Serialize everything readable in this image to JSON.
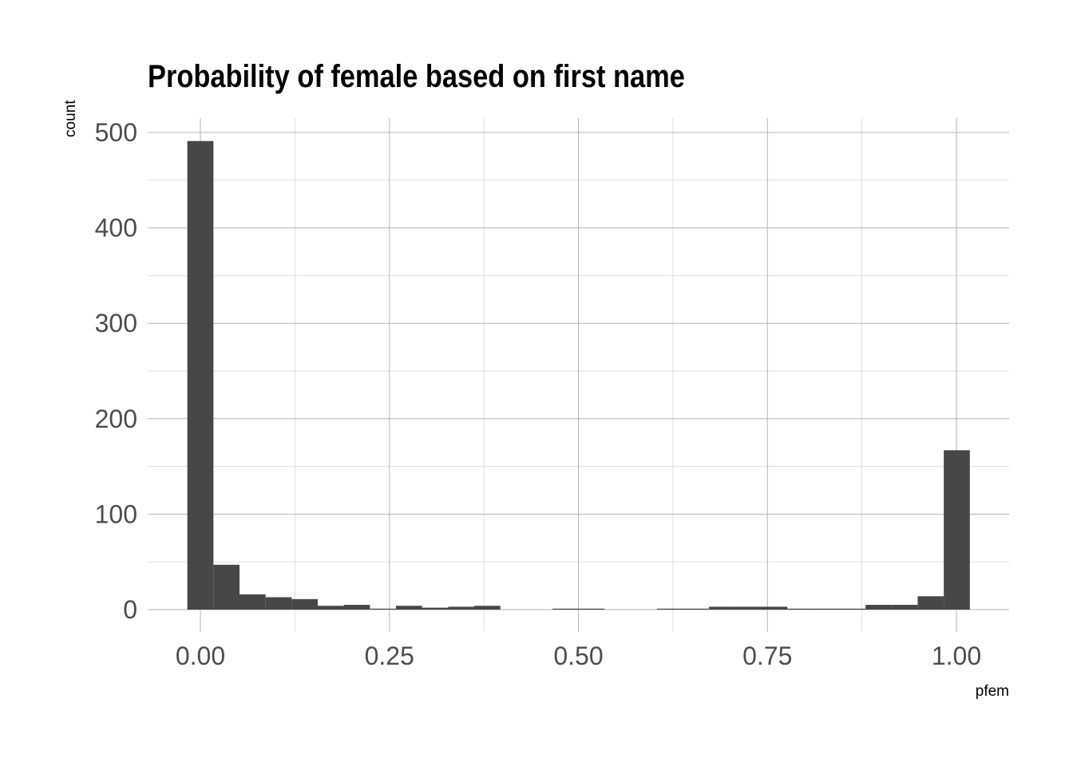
{
  "chart_data": {
    "type": "bar",
    "title": "Probability of female based on first name",
    "xlabel": "pfem",
    "ylabel": "count",
    "xlim": [
      -0.0345,
      1.0345
    ],
    "ylim": [
      0,
      515
    ],
    "bin_width": 0.0345,
    "x_ticks": [
      0.0,
      0.25,
      0.5,
      0.75,
      1.0
    ],
    "x_tick_labels": [
      "0.00",
      "0.25",
      "0.50",
      "0.75",
      "1.00"
    ],
    "y_ticks": [
      0,
      100,
      200,
      300,
      400,
      500
    ],
    "y_tick_labels": [
      "0",
      "100",
      "200",
      "300",
      "400",
      "500"
    ],
    "grid": true,
    "bar_color": "#474747",
    "bins": [
      {
        "x": 0.0,
        "count": 491
      },
      {
        "x": 0.0345,
        "count": 47
      },
      {
        "x": 0.069,
        "count": 16
      },
      {
        "x": 0.1035,
        "count": 13
      },
      {
        "x": 0.138,
        "count": 11
      },
      {
        "x": 0.1725,
        "count": 4
      },
      {
        "x": 0.207,
        "count": 5
      },
      {
        "x": 0.2415,
        "count": 1
      },
      {
        "x": 0.276,
        "count": 4
      },
      {
        "x": 0.3105,
        "count": 2
      },
      {
        "x": 0.345,
        "count": 3
      },
      {
        "x": 0.3795,
        "count": 4
      },
      {
        "x": 0.414,
        "count": 0
      },
      {
        "x": 0.4485,
        "count": 0
      },
      {
        "x": 0.483,
        "count": 1
      },
      {
        "x": 0.5175,
        "count": 1
      },
      {
        "x": 0.552,
        "count": 0
      },
      {
        "x": 0.5865,
        "count": 0
      },
      {
        "x": 0.621,
        "count": 1
      },
      {
        "x": 0.6555,
        "count": 1
      },
      {
        "x": 0.69,
        "count": 3
      },
      {
        "x": 0.7245,
        "count": 3
      },
      {
        "x": 0.759,
        "count": 3
      },
      {
        "x": 0.7935,
        "count": 1
      },
      {
        "x": 0.828,
        "count": 1
      },
      {
        "x": 0.8625,
        "count": 1
      },
      {
        "x": 0.897,
        "count": 5
      },
      {
        "x": 0.9315,
        "count": 5
      },
      {
        "x": 0.966,
        "count": 14
      },
      {
        "x": 1.0005,
        "count": 167
      }
    ]
  }
}
